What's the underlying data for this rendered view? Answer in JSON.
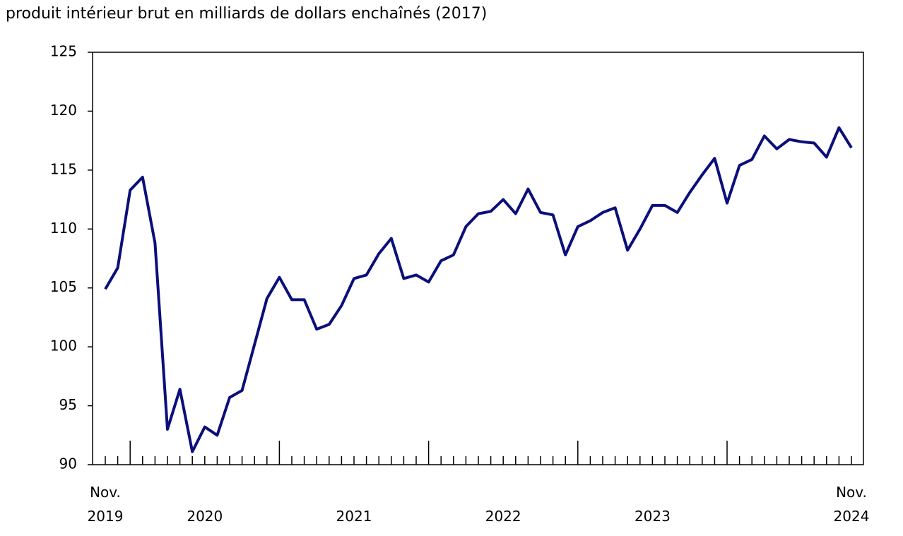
{
  "chart_data": {
    "type": "line",
    "title": "produit intérieur brut en milliards de dollars enchaînés (2017)",
    "categories": [
      "Nov. 2019",
      null,
      null,
      null,
      null,
      null,
      null,
      null,
      "2020",
      null,
      null,
      null,
      null,
      null,
      null,
      null,
      null,
      null,
      null,
      null,
      "2021",
      null,
      null,
      null,
      null,
      null,
      null,
      null,
      null,
      null,
      null,
      null,
      "2022",
      null,
      null,
      null,
      null,
      null,
      null,
      null,
      null,
      null,
      null,
      null,
      "2023",
      null,
      null,
      null,
      null,
      null,
      null,
      null,
      null,
      null,
      null,
      null,
      null,
      null,
      null,
      null,
      "Nov. 2024"
    ],
    "series": [
      {
        "color": "#0b0f7a",
        "values": [
          104.9,
          106.7,
          113.3,
          114.4,
          108.8,
          93.0,
          96.4,
          91.1,
          93.2,
          92.5,
          95.7,
          96.3,
          100.2,
          104.1,
          105.9,
          104.0,
          104.0,
          101.5,
          101.9,
          103.5,
          105.8,
          106.1,
          107.9,
          109.2,
          105.8,
          106.1,
          105.5,
          107.3,
          107.8,
          110.2,
          111.3,
          111.5,
          112.5,
          111.3,
          113.4,
          111.4,
          111.2,
          107.8,
          110.2,
          110.7,
          111.4,
          111.8,
          108.2,
          110.0,
          112.0,
          112.0,
          111.4,
          113.1,
          114.6,
          116.0,
          112.2,
          115.4,
          115.9,
          117.9,
          116.8,
          117.6,
          117.4,
          117.3,
          116.1,
          118.6,
          116.9
        ]
      }
    ],
    "ylim": [
      90,
      125
    ],
    "yticks": [
      90,
      95,
      100,
      105,
      110,
      115,
      120,
      125
    ],
    "grid": false
  }
}
